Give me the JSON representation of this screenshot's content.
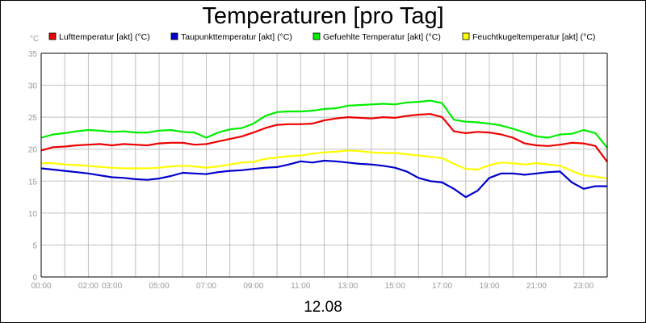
{
  "chart_data": {
    "type": "line",
    "title": "Temperaturen [pro Tag]",
    "ylabel": "°C",
    "xlabel": "12.08",
    "ylim": [
      0,
      35
    ],
    "yticks": [
      0,
      5,
      10,
      15,
      20,
      25,
      30,
      35
    ],
    "xlim": [
      0,
      24
    ],
    "xticks": [
      {
        "label": "00:00",
        "hour": 0
      },
      {
        "label": "02:00",
        "hour": 2
      },
      {
        "label": "03:00",
        "hour": 3
      },
      {
        "label": "05:00",
        "hour": 5
      },
      {
        "label": "07:00",
        "hour": 7
      },
      {
        "label": "09:00",
        "hour": 9
      },
      {
        "label": "11:00",
        "hour": 11
      },
      {
        "label": "13:00",
        "hour": 13
      },
      {
        "label": "15:00",
        "hour": 15
      },
      {
        "label": "17:00",
        "hour": 17
      },
      {
        "label": "19:00",
        "hour": 19
      },
      {
        "label": "21:00",
        "hour": 21
      },
      {
        "label": "23:00",
        "hour": 23
      }
    ],
    "x": [
      0,
      0.5,
      1,
      1.5,
      2,
      2.5,
      3,
      3.5,
      4,
      4.5,
      5,
      5.5,
      6,
      6.5,
      7,
      7.5,
      8,
      8.5,
      9,
      9.5,
      10,
      10.5,
      11,
      11.5,
      12,
      12.5,
      13,
      13.5,
      14,
      14.5,
      15,
      15.5,
      16,
      16.5,
      17,
      17.5,
      18,
      18.5,
      19,
      19.5,
      20,
      20.5,
      21,
      21.5,
      22,
      22.5,
      23,
      23.5,
      24
    ],
    "series": [
      {
        "name": "Lufttemperatur [akt] (°C)",
        "color": "#ee0000",
        "values": [
          19.8,
          20.3,
          20.4,
          20.6,
          20.7,
          20.8,
          20.6,
          20.8,
          20.7,
          20.6,
          20.9,
          21.0,
          21.0,
          20.7,
          20.8,
          21.2,
          21.6,
          22.0,
          22.6,
          23.3,
          23.8,
          23.9,
          23.9,
          24.0,
          24.5,
          24.8,
          25.0,
          24.9,
          24.8,
          25.0,
          24.9,
          25.2,
          25.4,
          25.5,
          25.0,
          22.8,
          22.5,
          22.7,
          22.6,
          22.3,
          21.8,
          20.9,
          20.6,
          20.5,
          20.7,
          21.0,
          20.9,
          20.5,
          18.0
        ]
      },
      {
        "name": "Taupunkttemperatur [akt] (°C)",
        "color": "#0000cc",
        "values": [
          17.0,
          16.8,
          16.6,
          16.4,
          16.2,
          15.9,
          15.6,
          15.5,
          15.3,
          15.2,
          15.4,
          15.8,
          16.3,
          16.2,
          16.1,
          16.4,
          16.6,
          16.7,
          16.9,
          17.1,
          17.2,
          17.6,
          18.1,
          17.9,
          18.2,
          18.1,
          17.9,
          17.7,
          17.6,
          17.4,
          17.1,
          16.5,
          15.5,
          15.0,
          14.8,
          13.8,
          12.5,
          13.5,
          15.5,
          16.2,
          16.2,
          16.0,
          16.2,
          16.4,
          16.5,
          14.8,
          13.8,
          14.2,
          14.2
        ]
      },
      {
        "name": "Gefuehlte Temperatur [akt] (°C)",
        "color": "#00ee00",
        "values": [
          21.8,
          22.3,
          22.5,
          22.8,
          23.0,
          22.9,
          22.7,
          22.8,
          22.6,
          22.6,
          22.9,
          23.0,
          22.7,
          22.6,
          21.8,
          22.6,
          23.1,
          23.3,
          24.0,
          25.2,
          25.8,
          25.9,
          25.9,
          26.0,
          26.3,
          26.4,
          26.8,
          26.9,
          27.0,
          27.1,
          27.0,
          27.3,
          27.4,
          27.6,
          27.2,
          24.6,
          24.3,
          24.2,
          24.0,
          23.7,
          23.2,
          22.6,
          22.0,
          21.8,
          22.3,
          22.4,
          23.0,
          22.5,
          20.2
        ]
      },
      {
        "name": "Feuchtkugeltemperatur [akt] (°C)",
        "color": "#ffff00",
        "values": [
          17.8,
          17.8,
          17.6,
          17.5,
          17.4,
          17.2,
          17.1,
          17.0,
          17.0,
          17.0,
          17.1,
          17.3,
          17.4,
          17.3,
          17.1,
          17.3,
          17.6,
          17.9,
          18.0,
          18.5,
          18.7,
          18.9,
          19.0,
          19.3,
          19.5,
          19.6,
          19.8,
          19.7,
          19.5,
          19.4,
          19.4,
          19.2,
          19.0,
          18.8,
          18.6,
          17.7,
          16.9,
          16.8,
          17.5,
          17.9,
          17.8,
          17.6,
          17.8,
          17.6,
          17.4,
          16.6,
          15.9,
          15.7,
          15.4
        ]
      }
    ]
  }
}
